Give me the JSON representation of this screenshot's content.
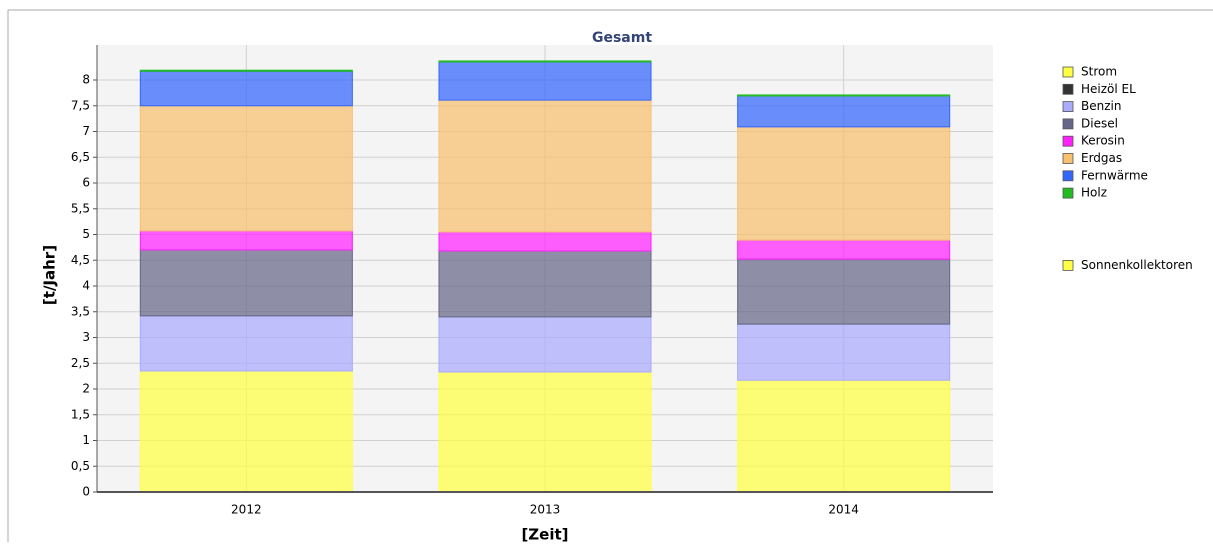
{
  "chart_data": {
    "type": "stacked_bar",
    "title": "Gesamt",
    "xlabel": "[Zeit]",
    "ylabel": "[t/Jahr]",
    "categories": [
      "2012",
      "2013",
      "2014"
    ],
    "series": [
      {
        "name": "Strom",
        "color": "#ffff44",
        "values": [
          2.35,
          2.33,
          2.17
        ]
      },
      {
        "name": "Heizöl EL",
        "color": "#333333",
        "values": [
          0,
          0,
          0
        ]
      },
      {
        "name": "Benzin",
        "color": "#aaaaff",
        "values": [
          1.07,
          1.07,
          1.09
        ]
      },
      {
        "name": "Diesel",
        "color": "#666688",
        "values": [
          1.28,
          1.28,
          1.26
        ]
      },
      {
        "name": "Kerosin",
        "color": "#ff22ff",
        "values": [
          0.37,
          0.37,
          0.37
        ]
      },
      {
        "name": "Erdgas",
        "color": "#f8c070",
        "values": [
          2.43,
          2.56,
          2.2
        ]
      },
      {
        "name": "Fernwärme",
        "color": "#3366ff",
        "values": [
          0.67,
          0.74,
          0.6
        ]
      },
      {
        "name": "Holz",
        "color": "#22bb22",
        "values": [
          0.02,
          0.02,
          0.02
        ]
      },
      {
        "name": "Sonnenkollektoren",
        "color": "#ffff44",
        "values": [
          0,
          0,
          0
        ]
      }
    ],
    "ylim": [
      0,
      8.3
    ],
    "yticks": [
      0,
      {
        "value": 0.5,
        "label": "0,5"
      },
      1,
      {
        "value": 1.5,
        "label": "1,5"
      },
      2,
      {
        "value": 2.5,
        "label": "2,5"
      },
      3,
      {
        "value": 3.5,
        "label": "3,5"
      },
      4,
      {
        "value": 4.5,
        "label": "4,5"
      },
      5,
      {
        "value": 5.5,
        "label": "5,5"
      },
      6,
      {
        "value": 6.5,
        "label": "6,5"
      },
      7,
      {
        "value": 7.5,
        "label": "7,5"
      },
      8
    ],
    "grid": true
  }
}
